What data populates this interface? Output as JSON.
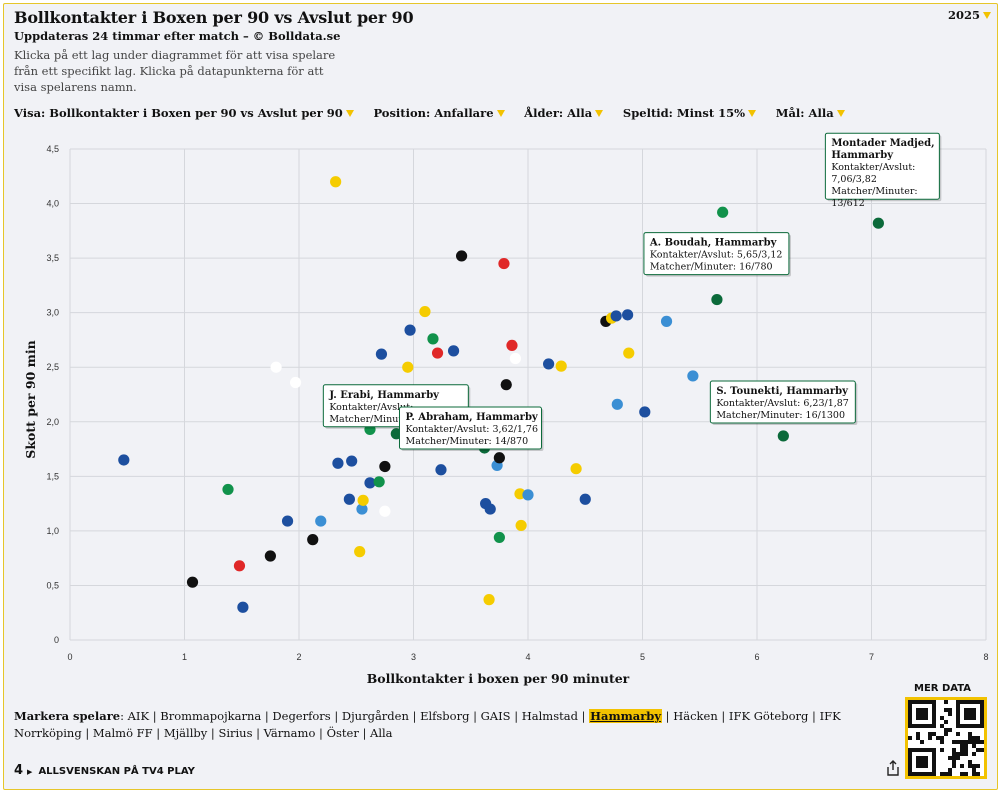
{
  "header": {
    "title": "Bollkontakter i Boxen per 90 vs Avslut per 90",
    "subtitle": "Uppdateras 24 timmar efter match – © Bolldata.se",
    "help": "Klicka på ett lag under diagrammet för att visa spelare från ett specifikt lag. Klicka på datapunkterna för att visa spelarens namn.",
    "season": "2025"
  },
  "filters": [
    {
      "label": "Visa:",
      "value": "Bollkontakter i Boxen per 90 vs Avslut per 90"
    },
    {
      "label": "Position:",
      "value": "Anfallare"
    },
    {
      "label": "Ålder:",
      "value": "Alla"
    },
    {
      "label": "Speltid:",
      "value": "Minst 15%"
    },
    {
      "label": "Mål:",
      "value": "Alla"
    }
  ],
  "colors": {
    "accent": "#f2c200",
    "AIK": "#111111",
    "Brommapojkarna": "#e02828",
    "Degerfors": "#ffffff",
    "Djurgården": "#3b8fd4",
    "Elfsborg": "#f5cc00",
    "GAIS": "#11924b",
    "Halmstad": "#1d4f9f",
    "Hammarby": "#0b6a3a",
    "Häcken": "#f5cc00",
    "IFK Göteborg": "#1d4f9f",
    "IFK Norrköping": "#ffffff",
    "Malmö FF": "#3b8fd4",
    "Mjällby": "#f5cc00",
    "Sirius": "#1d4f9f",
    "Värnamo": "#1d4f9f",
    "Öster": "#f5cc00",
    "grid": "#d5d7dc"
  },
  "chart_data": {
    "type": "scatter",
    "xlabel": "Bollkontakter i boxen per 90 minuter",
    "ylabel": "Skott per 90 min",
    "xlim": [
      0,
      8
    ],
    "ylim": [
      0,
      4.5
    ],
    "xticks": [
      "0",
      "1",
      "2",
      "3",
      "4",
      "5",
      "6",
      "7",
      "8"
    ],
    "yticks": [
      "0",
      "0,5",
      "1,0",
      "1,5",
      "2,0",
      "2,5",
      "3,0",
      "3,5",
      "4,0",
      "4,5"
    ],
    "grid": true,
    "highlight_team": "Hammarby",
    "points": [
      {
        "x": 0.47,
        "y": 1.65,
        "color": "#1d4f9f"
      },
      {
        "x": 1.07,
        "y": 0.53,
        "color": "#111111"
      },
      {
        "x": 1.38,
        "y": 1.38,
        "color": "#11924b"
      },
      {
        "x": 1.48,
        "y": 0.68,
        "color": "#e02828"
      },
      {
        "x": 1.51,
        "y": 0.3,
        "color": "#1d4f9f"
      },
      {
        "x": 1.75,
        "y": 0.77,
        "color": "#111111"
      },
      {
        "x": 1.8,
        "y": 2.5,
        "color": "#ffffff"
      },
      {
        "x": 1.9,
        "y": 1.09,
        "color": "#1d4f9f"
      },
      {
        "x": 1.97,
        "y": 2.36,
        "color": "#ffffff"
      },
      {
        "x": 2.12,
        "y": 0.92,
        "color": "#111111"
      },
      {
        "x": 2.19,
        "y": 1.09,
        "color": "#3b8fd4"
      },
      {
        "x": 2.32,
        "y": 4.2,
        "color": "#f5cc00"
      },
      {
        "x": 2.34,
        "y": 1.62,
        "color": "#1d4f9f"
      },
      {
        "x": 2.44,
        "y": 1.29,
        "color": "#1d4f9f"
      },
      {
        "x": 2.46,
        "y": 1.64,
        "color": "#1d4f9f"
      },
      {
        "x": 2.53,
        "y": 0.81,
        "color": "#f5cc00"
      },
      {
        "x": 2.55,
        "y": 1.2,
        "color": "#3b8fd4"
      },
      {
        "x": 2.56,
        "y": 1.28,
        "color": "#f5cc00"
      },
      {
        "x": 2.62,
        "y": 1.44,
        "color": "#1d4f9f"
      },
      {
        "x": 2.62,
        "y": 1.93,
        "color": "#11924b"
      },
      {
        "x": 2.7,
        "y": 1.45,
        "color": "#11924b"
      },
      {
        "x": 2.72,
        "y": 2.62,
        "color": "#1d4f9f"
      },
      {
        "x": 2.75,
        "y": 1.18,
        "color": "#ffffff"
      },
      {
        "x": 2.75,
        "y": 1.59,
        "color": "#111111"
      },
      {
        "x": 2.85,
        "y": 1.89,
        "color": "#0b6a3a"
      },
      {
        "x": 2.95,
        "y": 2.5,
        "color": "#f5cc00"
      },
      {
        "x": 2.97,
        "y": 2.84,
        "color": "#1d4f9f"
      },
      {
        "x": 3.1,
        "y": 3.01,
        "color": "#f5cc00"
      },
      {
        "x": 3.17,
        "y": 2.76,
        "color": "#11924b"
      },
      {
        "x": 3.21,
        "y": 2.63,
        "color": "#e02828"
      },
      {
        "x": 3.24,
        "y": 1.56,
        "color": "#1d4f9f"
      },
      {
        "x": 3.35,
        "y": 2.65,
        "color": "#1d4f9f"
      },
      {
        "x": 3.42,
        "y": 3.52,
        "color": "#111111"
      },
      {
        "x": 3.62,
        "y": 1.76,
        "color": "#0b6a3a"
      },
      {
        "x": 3.63,
        "y": 1.25,
        "color": "#1d4f9f"
      },
      {
        "x": 3.66,
        "y": 0.37,
        "color": "#f5cc00"
      },
      {
        "x": 3.67,
        "y": 1.2,
        "color": "#1d4f9f"
      },
      {
        "x": 3.73,
        "y": 1.6,
        "color": "#3b8fd4"
      },
      {
        "x": 3.75,
        "y": 0.94,
        "color": "#11924b"
      },
      {
        "x": 3.75,
        "y": 1.67,
        "color": "#111111"
      },
      {
        "x": 3.79,
        "y": 3.45,
        "color": "#e02828"
      },
      {
        "x": 3.81,
        "y": 2.34,
        "color": "#111111"
      },
      {
        "x": 3.86,
        "y": 2.7,
        "color": "#e02828"
      },
      {
        "x": 3.89,
        "y": 2.58,
        "color": "#ffffff"
      },
      {
        "x": 3.93,
        "y": 1.34,
        "color": "#f5cc00"
      },
      {
        "x": 3.94,
        "y": 1.05,
        "color": "#f5cc00"
      },
      {
        "x": 4.0,
        "y": 1.33,
        "color": "#3b8fd4"
      },
      {
        "x": 4.18,
        "y": 2.53,
        "color": "#1d4f9f"
      },
      {
        "x": 4.29,
        "y": 2.51,
        "color": "#f5cc00"
      },
      {
        "x": 4.42,
        "y": 1.57,
        "color": "#f5cc00"
      },
      {
        "x": 4.5,
        "y": 1.29,
        "color": "#1d4f9f"
      },
      {
        "x": 4.68,
        "y": 2.92,
        "color": "#111111"
      },
      {
        "x": 4.73,
        "y": 2.95,
        "color": "#f5cc00"
      },
      {
        "x": 4.77,
        "y": 2.97,
        "color": "#1d4f9f"
      },
      {
        "x": 4.78,
        "y": 2.16,
        "color": "#3b8fd4"
      },
      {
        "x": 4.87,
        "y": 2.98,
        "color": "#1d4f9f"
      },
      {
        "x": 4.88,
        "y": 2.63,
        "color": "#f5cc00"
      },
      {
        "x": 5.02,
        "y": 2.09,
        "color": "#1d4f9f"
      },
      {
        "x": 5.21,
        "y": 2.92,
        "color": "#3b8fd4"
      },
      {
        "x": 5.44,
        "y": 2.42,
        "color": "#3b8fd4"
      },
      {
        "x": 5.65,
        "y": 3.12,
        "color": "#0b6a3a"
      },
      {
        "x": 5.7,
        "y": 3.92,
        "color": "#11924b"
      },
      {
        "x": 6.23,
        "y": 1.87,
        "color": "#0b6a3a"
      },
      {
        "x": 7.06,
        "y": 3.82,
        "color": "#0b6a3a"
      }
    ],
    "tooltips": [
      {
        "name": "Montader Madjed, Hammarby",
        "lines": [
          "Kontakter/Avslut:",
          "7,06/3,82",
          "Matcher/Minuter:",
          "13/612"
        ],
        "x": 7.06,
        "y": 3.82
      },
      {
        "name": "A. Boudah, Hammarby",
        "lines": [
          "Kontakter/Avslut: 5,65/3,12",
          "Matcher/Minuter: 16/780"
        ],
        "x": 5.65,
        "y": 3.12
      },
      {
        "name": "S. Tounekti, Hammarby",
        "lines": [
          "Kontakter/Avslut: 6,23/1,87",
          "Matcher/Minuter: 16/1300"
        ],
        "x": 6.23,
        "y": 1.87
      },
      {
        "name": "J. Erabi, Hammarby",
        "lines": [
          "Kontakter/Avslut:",
          "Matcher/Minuter:"
        ],
        "x": 2.85,
        "y": 1.89
      },
      {
        "name": "P. Abraham, Hammarby",
        "lines": [
          "Kontakter/Avslut: 3,62/1,76",
          "Matcher/Minuter: 14/870"
        ],
        "x": 3.62,
        "y": 1.76
      }
    ]
  },
  "teams_section": {
    "lead": "Markera spelare",
    "teams": [
      "AIK",
      "Brommapojkarna",
      "Degerfors",
      "Djurgården",
      "Elfsborg",
      "GAIS",
      "Halmstad",
      "Hammarby",
      "Häcken",
      "IFK Göteborg",
      "IFK Norrköping",
      "Malmö FF",
      "Mjällby",
      "Sirius",
      "Värnamo",
      "Öster",
      "Alla"
    ],
    "active": "Hammarby"
  },
  "footer": {
    "logo": "4",
    "text": "ALLSVENSKAN PÅ TV4 PLAY",
    "more_data": "MER DATA"
  }
}
